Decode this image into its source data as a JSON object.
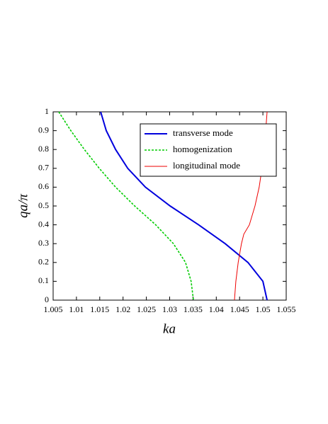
{
  "chart_data": {
    "type": "line",
    "x_label": "ka",
    "y_label": "qa/π",
    "xlim": [
      1.005,
      1.055
    ],
    "xticks": [
      1.005,
      1.01,
      1.015,
      1.02,
      1.025,
      1.03,
      1.035,
      1.04,
      1.045,
      1.05,
      1.055
    ],
    "ylim": [
      0,
      1
    ],
    "yticks": [
      0,
      0.1,
      0.2,
      0.3,
      0.4,
      0.5,
      0.6,
      0.7,
      0.8,
      0.9,
      1
    ],
    "legend": "upper right",
    "series": [
      {
        "name": "transverse mode",
        "color": "#0000dd",
        "line_style": "solid",
        "line_width": 2,
        "x": [
          1.0152,
          1.0164,
          1.0184,
          1.021,
          1.0248,
          1.0301,
          1.0362,
          1.0419,
          1.0468,
          1.05,
          1.0509
        ],
        "values": [
          1,
          0.9,
          0.8,
          0.7,
          0.6,
          0.5,
          0.4,
          0.3,
          0.2,
          0.1,
          0
        ]
      },
      {
        "name": "homogenization",
        "color": "#00cc00",
        "line_style": "dashed",
        "line_width": 1.6,
        "x": [
          1.0062,
          1.0088,
          1.0117,
          1.0149,
          1.0184,
          1.0225,
          1.027,
          1.0308,
          1.0334,
          1.0346,
          1.0351
        ],
        "values": [
          1,
          0.9,
          0.8,
          0.7,
          0.6,
          0.5,
          0.4,
          0.3,
          0.2,
          0.1,
          0
        ]
      },
      {
        "name": "longitudinal mode",
        "color": "#ee0000",
        "line_style": "solid",
        "line_width": 1,
        "x": [
          1.0439,
          1.0442,
          1.0447,
          1.0454,
          1.0459,
          1.0471,
          1.0483,
          1.0492,
          1.0498,
          1.0503,
          1.0506,
          1.0509
        ],
        "values": [
          0,
          0.1,
          0.2,
          0.3,
          0.35,
          0.4,
          0.5,
          0.6,
          0.7,
          0.8,
          0.9,
          1
        ]
      }
    ]
  }
}
